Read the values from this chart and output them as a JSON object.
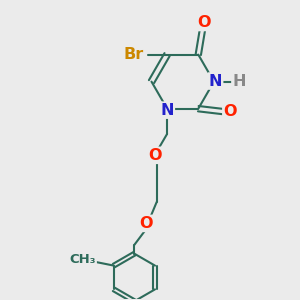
{
  "bg_color": "#ebebeb",
  "bond_color": "#2d6b5a",
  "bond_width": 1.5,
  "atom_colors": {
    "O": "#ff2200",
    "N": "#2222cc",
    "Br": "#cc8800",
    "H": "#888888",
    "C": "#2d6b5a"
  },
  "font_size_atom": 11.5,
  "font_size_small": 10
}
